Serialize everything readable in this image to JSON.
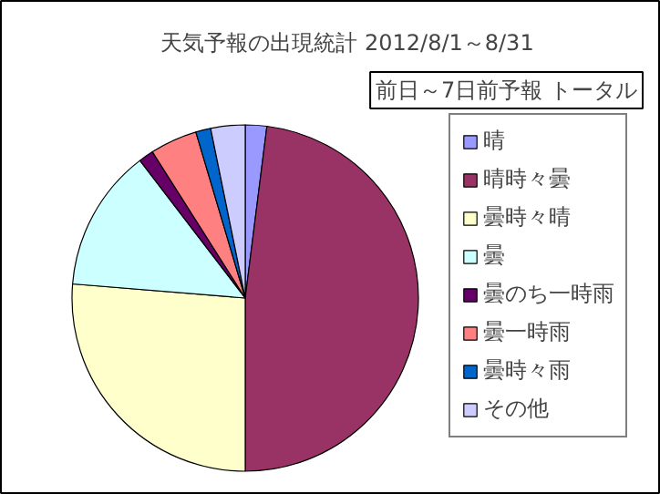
{
  "chart_data": {
    "type": "pie",
    "title": "天気予報の出現統計 2012/8/1～8/31",
    "subtitle": "前日～7日前予報 トータル",
    "categories": [
      "晴",
      "晴時々曇",
      "曇時々晴",
      "曇",
      "曇のち一時雨",
      "曇一時雨",
      "曇時々雨",
      "その他"
    ],
    "values": [
      2.0,
      48.0,
      26.3,
      13.3,
      1.4,
      4.4,
      1.4,
      3.2
    ],
    "colors": [
      "#9999ff",
      "#993366",
      "#ffffcc",
      "#ccffff",
      "#660066",
      "#ff8080",
      "#0066cc",
      "#ccccff"
    ],
    "legend": "right"
  }
}
